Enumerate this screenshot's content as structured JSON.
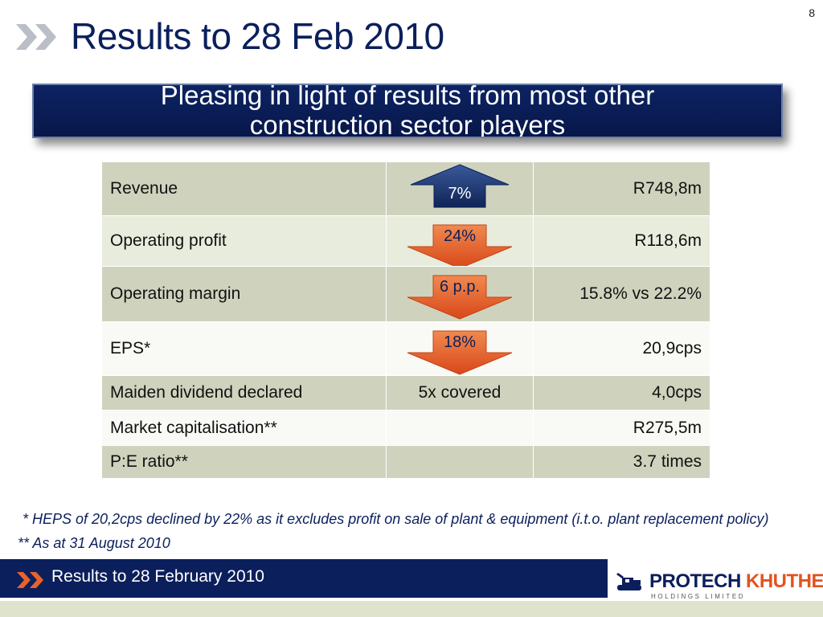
{
  "page_number": "8",
  "title": "Results to 28 Feb 2010",
  "banner": {
    "line1": "Pleasing in light of results from most other",
    "line2": "construction sector players"
  },
  "table": {
    "rows": [
      {
        "label": "Revenue",
        "change": "7%",
        "change_direction": "up",
        "value": "R748,8m"
      },
      {
        "label": "Operating profit",
        "change": "24%",
        "change_direction": "down",
        "value": "R118,6m"
      },
      {
        "label": "Operating margin",
        "change": "6 p.p.",
        "change_direction": "down",
        "value": "15.8% vs 22.2%"
      },
      {
        "label": "EPS*",
        "change": "18%",
        "change_direction": "down",
        "value": "20,9cps"
      },
      {
        "label": "Maiden dividend declared",
        "change": "5x covered",
        "value": "4,0cps"
      },
      {
        "label": "Market capitalisation**",
        "change": "",
        "value": "R275,5m"
      },
      {
        "label": "P:E ratio**",
        "change": "",
        "value": "3.7 times"
      }
    ]
  },
  "footnotes": {
    "note1": " *  HEPS of 20,2cps declined by 22% as it excludes profit on sale of plant & equipment (i.t.o. plant replacement policy)",
    "note2": "** As at 31 August 2010"
  },
  "footer": {
    "text": "Results to 28 February 2010",
    "logo_name_part1": "PROTECH",
    "logo_name_part2": "KHUTHELE",
    "logo_subtitle": "HOLDINGS LIMITED"
  },
  "colors": {
    "navy": "#0b1f5c",
    "orange": "#e8622a",
    "up_arrow": "#1e3a78",
    "row_dark": "#cfd3bd",
    "row_light": "#e8ecdc"
  },
  "icons": {
    "title_arrows": "double-chevron-right-icon",
    "footer_arrows": "double-chevron-right-icon",
    "up_arrow": "arrow-up-icon",
    "down_arrow": "arrow-down-icon"
  }
}
